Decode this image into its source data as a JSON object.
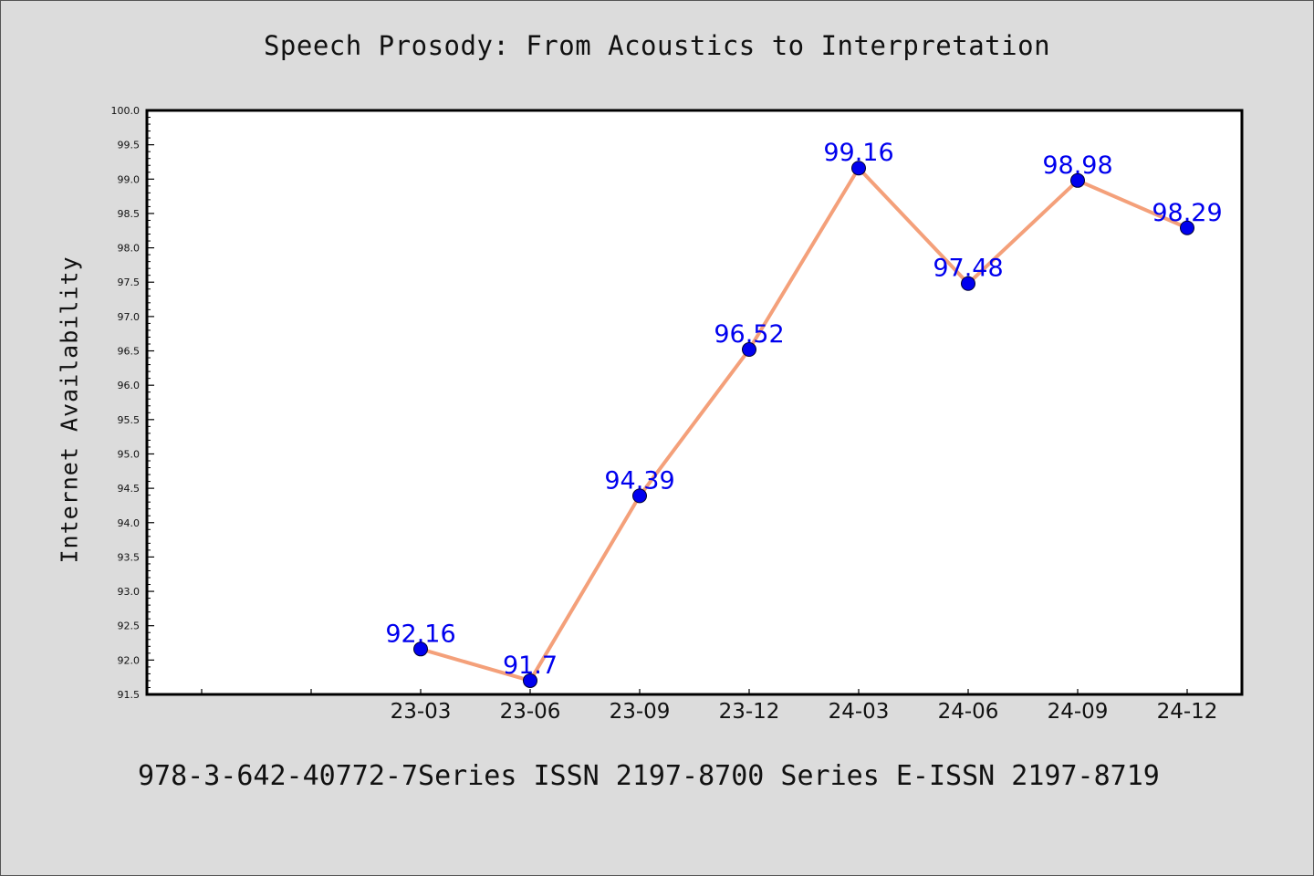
{
  "chart_data": {
    "type": "line",
    "title": "Speech Prosody: From Acoustics to Interpretation",
    "xlabel": "",
    "ylabel": "Internet Availability",
    "categories": [
      "23-03",
      "23-06",
      "23-09",
      "23-12",
      "24-03",
      "24-06",
      "24-09",
      "24-12"
    ],
    "series": [
      {
        "values": [
          92.16,
          91.7,
          94.39,
          96.52,
          99.16,
          97.48,
          98.98,
          98.29
        ],
        "data_labels": [
          "92.16",
          "91.7",
          "94.39",
          "96.52",
          "99.16",
          "97.48",
          "98.98",
          "98.29"
        ],
        "line_color": "#f4a07a",
        "marker_color": "#0000ee",
        "label_color": "#0000ee"
      }
    ],
    "ylim": [
      91.5,
      100.0
    ],
    "yticks": [
      "91.5",
      "92.0",
      "92.5",
      "93.0",
      "93.5",
      "94.0",
      "94.5",
      "95.0",
      "95.5",
      "96.0",
      "96.5",
      "97.0",
      "97.5",
      "98.0",
      "98.5",
      "99.0",
      "99.5",
      "100.0"
    ],
    "grid": false,
    "legend": "none"
  },
  "footer": "978-3-642-40772-7Series ISSN 2197-8700 Series E-ISSN 2197-8719"
}
